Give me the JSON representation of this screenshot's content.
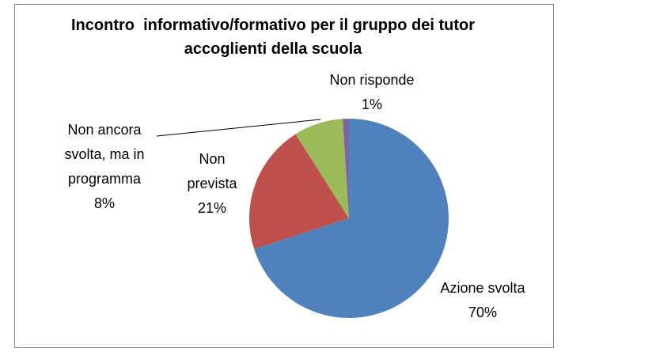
{
  "chart_data": {
    "type": "pie",
    "title": "Incontro  informativo/formativo per il gruppo dei tutor accoglienti della scuola",
    "categories": [
      "Azione svolta",
      "Non prevista",
      "Non ancora svolta, ma in programma",
      "Non risponde"
    ],
    "values": [
      70,
      21,
      8,
      1
    ],
    "value_labels": [
      "70%",
      "21%",
      "8%",
      "1%"
    ],
    "colors": [
      "#4f81bd",
      "#c0504d",
      "#9bbb59",
      "#8064a2"
    ]
  }
}
